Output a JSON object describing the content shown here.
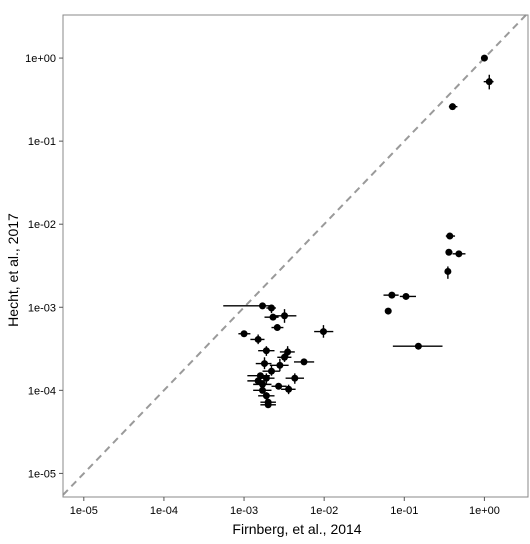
{
  "chart_data": {
    "type": "scatter",
    "title": "",
    "xlabel": "Firnberg, et al., 2014",
    "ylabel": "Hecht, et al., 2017",
    "x_scale": "log10",
    "y_scale": "log10",
    "xlim": [
      5.5e-06,
      3.5
    ],
    "ylim": [
      5.2e-06,
      3.3
    ],
    "x_ticks": [
      1e-05,
      0.0001,
      0.001,
      0.01,
      0.1,
      1
    ],
    "x_tick_labels": [
      "1e-05",
      "1e-04",
      "1e-03",
      "1e-02",
      "1e-01",
      "1e+00"
    ],
    "y_ticks": [
      1e-05,
      0.0001,
      0.001,
      0.01,
      0.1,
      1
    ],
    "y_tick_labels": [
      "1e-05",
      "1e-04",
      "1e-03",
      "1e-02",
      "1e-01",
      "1e+00"
    ],
    "grid": false,
    "legend": "none",
    "reference_line": {
      "style": "dashed",
      "color": "#999999",
      "equation": "y = x"
    },
    "colors": {
      "points": "#000000",
      "frame": "#888888",
      "reference": "#9a9a9a"
    },
    "points": [
      {
        "x": 1.0,
        "y": 1.0,
        "xlo": 1.0,
        "xhi": 1.0,
        "ylo": 1.0,
        "yhi": 1.0
      },
      {
        "x": 1.15,
        "y": 0.52,
        "xlo": 0.98,
        "xhi": 1.3,
        "ylo": 0.42,
        "yhi": 0.63
      },
      {
        "x": 0.4,
        "y": 0.26,
        "xlo": 0.36,
        "xhi": 0.46,
        "ylo": 0.26,
        "yhi": 0.26
      },
      {
        "x": 0.37,
        "y": 0.0072,
        "xlo": 0.33,
        "xhi": 0.43,
        "ylo": 0.0072,
        "yhi": 0.0072
      },
      {
        "x": 0.36,
        "y": 0.0046,
        "xlo": 0.33,
        "xhi": 0.4,
        "ylo": 0.0046,
        "yhi": 0.0046
      },
      {
        "x": 0.48,
        "y": 0.0044,
        "xlo": 0.4,
        "xhi": 0.58,
        "ylo": 0.0044,
        "yhi": 0.0044
      },
      {
        "x": 0.35,
        "y": 0.0027,
        "xlo": 0.35,
        "xhi": 0.35,
        "ylo": 0.0022,
        "yhi": 0.0031
      },
      {
        "x": 0.07,
        "y": 0.0014,
        "xlo": 0.055,
        "xhi": 0.085,
        "ylo": 0.0014,
        "yhi": 0.0014
      },
      {
        "x": 0.105,
        "y": 0.00135,
        "xlo": 0.088,
        "xhi": 0.14,
        "ylo": 0.00135,
        "yhi": 0.00135
      },
      {
        "x": 0.063,
        "y": 0.0009,
        "xlo": 0.063,
        "xhi": 0.063,
        "ylo": 0.0009,
        "yhi": 0.0009
      },
      {
        "x": 0.15,
        "y": 0.00034,
        "xlo": 0.072,
        "xhi": 0.3,
        "ylo": 0.00034,
        "yhi": 0.00034
      },
      {
        "x": 0.0098,
        "y": 0.00051,
        "xlo": 0.0075,
        "xhi": 0.013,
        "ylo": 0.00043,
        "yhi": 0.00061
      },
      {
        "x": 0.0017,
        "y": 0.00104,
        "xlo": 0.00055,
        "xhi": 0.0021,
        "ylo": 0.00104,
        "yhi": 0.00104
      },
      {
        "x": 0.0022,
        "y": 0.00098,
        "xlo": 0.0019,
        "xhi": 0.0025,
        "ylo": 0.00085,
        "yhi": 0.00108
      },
      {
        "x": 0.0023,
        "y": 0.00076,
        "xlo": 0.0018,
        "xhi": 0.0027,
        "ylo": 0.00076,
        "yhi": 0.00076
      },
      {
        "x": 0.0032,
        "y": 0.00079,
        "xlo": 0.0023,
        "xhi": 0.0045,
        "ylo": 0.00065,
        "yhi": 0.00095
      },
      {
        "x": 0.0026,
        "y": 0.00057,
        "xlo": 0.0022,
        "xhi": 0.0031,
        "ylo": 0.00057,
        "yhi": 0.00057
      },
      {
        "x": 0.001,
        "y": 0.00048,
        "xlo": 0.00085,
        "xhi": 0.0012,
        "ylo": 0.00048,
        "yhi": 0.00048
      },
      {
        "x": 0.0015,
        "y": 0.00041,
        "xlo": 0.0012,
        "xhi": 0.0018,
        "ylo": 0.00036,
        "yhi": 0.00047
      },
      {
        "x": 0.0019,
        "y": 0.0003,
        "xlo": 0.0015,
        "xhi": 0.0024,
        "ylo": 0.00026,
        "yhi": 0.00034
      },
      {
        "x": 0.0035,
        "y": 0.00029,
        "xlo": 0.0028,
        "xhi": 0.0043,
        "ylo": 0.00025,
        "yhi": 0.00034
      },
      {
        "x": 0.0032,
        "y": 0.00025,
        "xlo": 0.0026,
        "xhi": 0.0039,
        "ylo": 0.00022,
        "yhi": 0.00028
      },
      {
        "x": 0.0056,
        "y": 0.00022,
        "xlo": 0.0042,
        "xhi": 0.0075,
        "ylo": 0.00022,
        "yhi": 0.00022
      },
      {
        "x": 0.0018,
        "y": 0.00021,
        "xlo": 0.0014,
        "xhi": 0.0022,
        "ylo": 0.00018,
        "yhi": 0.00025
      },
      {
        "x": 0.0028,
        "y": 0.0002,
        "xlo": 0.0021,
        "xhi": 0.0036,
        "ylo": 0.00017,
        "yhi": 0.00024
      },
      {
        "x": 0.0022,
        "y": 0.00017,
        "xlo": 0.0017,
        "xhi": 0.0028,
        "ylo": 0.00015,
        "yhi": 0.0002
      },
      {
        "x": 0.0016,
        "y": 0.00015,
        "xlo": 0.0011,
        "xhi": 0.0021,
        "ylo": 0.00015,
        "yhi": 0.00015
      },
      {
        "x": 0.0019,
        "y": 0.00014,
        "xlo": 0.0015,
        "xhi": 0.0024,
        "ylo": 0.00012,
        "yhi": 0.00016
      },
      {
        "x": 0.0043,
        "y": 0.00014,
        "xlo": 0.0033,
        "xhi": 0.0056,
        "ylo": 0.00012,
        "yhi": 0.00016
      },
      {
        "x": 0.0015,
        "y": 0.00013,
        "xlo": 0.0011,
        "xhi": 0.0019,
        "ylo": 0.00013,
        "yhi": 0.00013
      },
      {
        "x": 0.0017,
        "y": 0.000118,
        "xlo": 0.0013,
        "xhi": 0.0022,
        "ylo": 0.000118,
        "yhi": 0.000118
      },
      {
        "x": 0.0027,
        "y": 0.000112,
        "xlo": 0.0022,
        "xhi": 0.0034,
        "ylo": 0.000112,
        "yhi": 0.000112
      },
      {
        "x": 0.0036,
        "y": 0.000103,
        "xlo": 0.0029,
        "xhi": 0.0044,
        "ylo": 9e-05,
        "yhi": 0.000117
      },
      {
        "x": 0.0017,
        "y": 0.0001,
        "xlo": 0.0013,
        "xhi": 0.0022,
        "ylo": 0.0001,
        "yhi": 0.0001
      },
      {
        "x": 0.0019,
        "y": 8.6e-05,
        "xlo": 0.0015,
        "xhi": 0.0024,
        "ylo": 7.7e-05,
        "yhi": 9.5e-05
      },
      {
        "x": 0.002,
        "y": 7.2e-05,
        "xlo": 0.0016,
        "xhi": 0.0025,
        "ylo": 7.2e-05,
        "yhi": 7.2e-05
      },
      {
        "x": 0.002,
        "y": 6.7e-05,
        "xlo": 0.0016,
        "xhi": 0.0025,
        "ylo": 6.7e-05,
        "yhi": 6.7e-05
      }
    ]
  }
}
